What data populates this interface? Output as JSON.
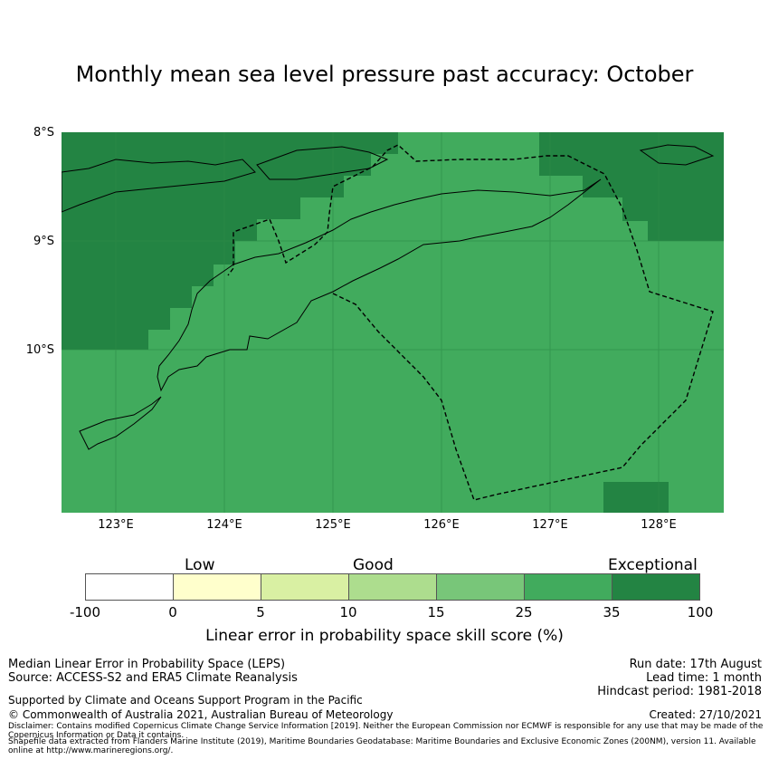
{
  "title": "Monthly mean sea level pressure past accuracy: October",
  "map": {
    "lat_labels": [
      "8°S",
      "9°S",
      "10°S"
    ],
    "lon_labels": [
      "123°E",
      "124°E",
      "125°E",
      "126°E",
      "127°E",
      "128°E"
    ]
  },
  "legend": {
    "categories": [
      "Low",
      "Good",
      "Exceptional"
    ],
    "ticks": [
      "-100",
      "0",
      "5",
      "10",
      "15",
      "25",
      "35",
      "100"
    ],
    "colors": [
      "#ffffff",
      "#ffffcc",
      "#d9f0a3",
      "#addd8e",
      "#78c679",
      "#41ab5d",
      "#238443"
    ],
    "label": "Linear error in probability space skill score (%)"
  },
  "footer": {
    "metric": "Median Linear Error in Probability Space (LEPS)",
    "source": "Source: ACCESS-S2 and ERA5 Climate Reanalysis",
    "support": "Supported by Climate and Oceans Support Program in the Pacific",
    "copyright": "© Commonwealth of Australia 2021, Australian Bureau of Meteorology",
    "disclaimer": "Disclaimer: Contains modified Copernicus Climate Change Service Information [2019]. Neither the European Commission nor ECMWF is responsible for any use that may be made of the Copernicus Information or Data it contains.",
    "shapefile": "Shapefile data extracted from Flanders Marine Institute (2019), Maritime Boundaries Geodatabase: Maritime Boundaries and Exclusive Economic Zones (200NM), version 11. Available online at http://www.marineregions.org/.",
    "run_date": "Run date: 17th August",
    "lead_time": "Lead time: 1 month",
    "hindcast": "Hindcast period: 1981-2018",
    "created": "Created: 27/10/2021"
  }
}
